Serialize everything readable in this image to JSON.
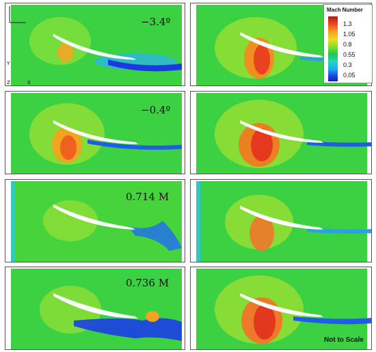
{
  "annotations": {
    "row1": "−3.4º",
    "row2": "−0.4º",
    "row3": "0.714 M",
    "row4": "0.736 M"
  },
  "legend": {
    "title": "Mach Number",
    "ticks": [
      "1.3",
      "1.05",
      "0.8",
      "0.55",
      "0.3",
      "0.05"
    ]
  },
  "axes": {
    "y_label": "Y",
    "x_label": "X",
    "z_label": "Z"
  },
  "scale_note": "Not to Scale",
  "colors": {
    "freestream": "#35cf39",
    "supersonic": "#f23a1f",
    "wake": "#1b3ee6",
    "airfoil": "#ffffff"
  }
}
